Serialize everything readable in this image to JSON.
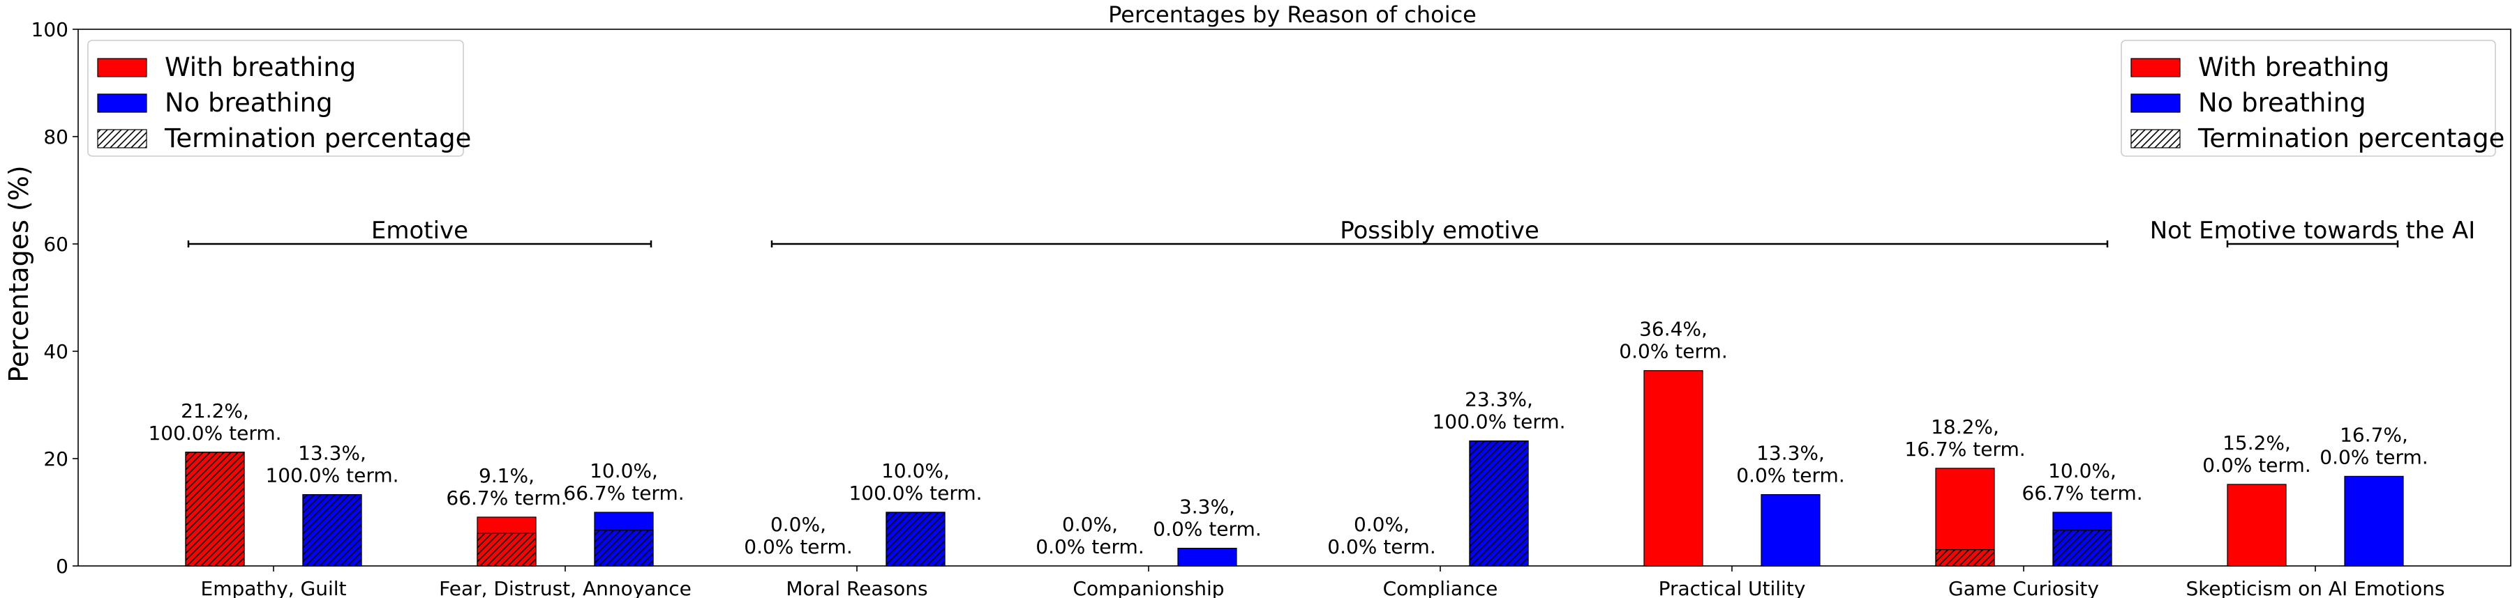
{
  "chart_data": {
    "type": "bar",
    "title": "Percentages by Reason of choice",
    "xlabel": "",
    "ylabel": "Percentages (%)",
    "ylim": [
      0,
      100
    ],
    "yticks": [
      0,
      20,
      40,
      60,
      80,
      100
    ],
    "grid": false,
    "categories": [
      "Empathy, Guilt",
      "Fear, Distrust, Annoyance",
      "Moral Reasons",
      "Companionship",
      "Compliance",
      "Practical Utility",
      "Game Curiosity",
      "Skepticism on AI Emotions"
    ],
    "series": [
      {
        "name": "With breathing",
        "color": "#ff0000",
        "values": [
          21.2,
          9.1,
          0.0,
          0.0,
          0.0,
          36.4,
          18.2,
          15.2
        ],
        "termination_percent": [
          100.0,
          66.7,
          0.0,
          0.0,
          0.0,
          0.0,
          16.7,
          0.0
        ],
        "labels": [
          [
            "21.2%,",
            "100.0% term."
          ],
          [
            "9.1%,",
            "66.7% term."
          ],
          [
            "0.0%,",
            "0.0% term."
          ],
          [
            "0.0%,",
            "0.0% term."
          ],
          [
            "0.0%,",
            "0.0% term."
          ],
          [
            "36.4%,",
            "0.0% term."
          ],
          [
            "18.2%,",
            "16.7% term."
          ],
          [
            "15.2%,",
            "0.0% term."
          ]
        ]
      },
      {
        "name": "No breathing",
        "color": "#0000ff",
        "values": [
          13.3,
          10.0,
          10.0,
          3.3,
          23.3,
          13.3,
          10.0,
          16.7
        ],
        "termination_percent": [
          100.0,
          66.7,
          100.0,
          0.0,
          100.0,
          0.0,
          66.7,
          0.0
        ],
        "labels": [
          [
            "13.3%,",
            "100.0% term."
          ],
          [
            "10.0%,",
            "66.7% term."
          ],
          [
            "10.0%,",
            "100.0% term."
          ],
          [
            "3.3%,",
            "0.0% term."
          ],
          [
            "23.3%,",
            "100.0% term."
          ],
          [
            "13.3%,",
            "0.0% term."
          ],
          [
            "10.0%,",
            "66.7% term."
          ],
          [
            "16.7%,",
            "0.0% term."
          ]
        ]
      }
    ],
    "legend": {
      "placement": [
        "top-left",
        "top-right"
      ],
      "entries": [
        "With breathing",
        "No breathing",
        "Termination percentage"
      ]
    },
    "groups": [
      {
        "label": "Emotive",
        "from_category": 0,
        "to_category": 1,
        "y": 60
      },
      {
        "label": "Possibly emotive",
        "from_category": 2,
        "to_category": 6,
        "y": 60
      },
      {
        "label": "Not Emotive towards the AI",
        "from_category": 7,
        "to_category": 7,
        "y": 60
      }
    ]
  }
}
